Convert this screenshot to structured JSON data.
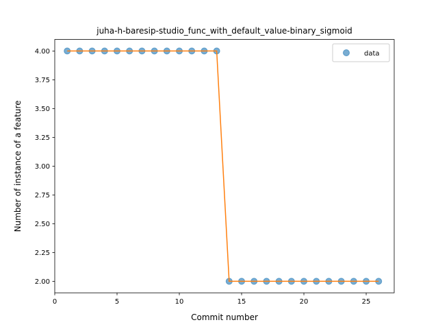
{
  "chart_data": {
    "type": "scatter",
    "title": "juha-h-baresip-studio_func_with_default_value-binary_sigmoid",
    "xlabel": "Commit number",
    "ylabel": "Number of instance of a feature",
    "xlim": [
      0,
      27.25
    ],
    "ylim": [
      1.9,
      4.1
    ],
    "x_ticks": [
      0,
      5,
      10,
      15,
      20,
      25
    ],
    "x_tick_labels": [
      "0",
      "5",
      "10",
      "15",
      "20",
      "25"
    ],
    "y_ticks": [
      2.0,
      2.25,
      2.5,
      2.75,
      3.0,
      3.25,
      3.5,
      3.75,
      4.0
    ],
    "y_tick_labels": [
      "2.00",
      "2.25",
      "2.50",
      "2.75",
      "3.00",
      "3.25",
      "3.50",
      "3.75",
      "4.00"
    ],
    "grid": false,
    "legend_position": "top-right",
    "series": [
      {
        "name": "data",
        "kind": "scatter",
        "color": "#1f77b4",
        "x": [
          1,
          2,
          3,
          4,
          5,
          6,
          7,
          8,
          9,
          10,
          11,
          12,
          13,
          14,
          15,
          16,
          17,
          18,
          19,
          20,
          21,
          22,
          23,
          24,
          25,
          26
        ],
        "y": [
          4,
          4,
          4,
          4,
          4,
          4,
          4,
          4,
          4,
          4,
          4,
          4,
          4,
          2,
          2,
          2,
          2,
          2,
          2,
          2,
          2,
          2,
          2,
          2,
          2,
          2
        ]
      },
      {
        "kind": "line",
        "color": "#ff7f0e",
        "x": [
          1,
          2,
          3,
          4,
          5,
          6,
          7,
          8,
          9,
          10,
          11,
          12,
          13,
          14,
          15,
          16,
          17,
          18,
          19,
          20,
          21,
          22,
          23,
          24,
          25,
          26
        ],
        "y": [
          4,
          4,
          4,
          4,
          4,
          4,
          4,
          4,
          4,
          4,
          4,
          4,
          4,
          2,
          2,
          2,
          2,
          2,
          2,
          2,
          2,
          2,
          2,
          2,
          2,
          2
        ]
      }
    ]
  }
}
